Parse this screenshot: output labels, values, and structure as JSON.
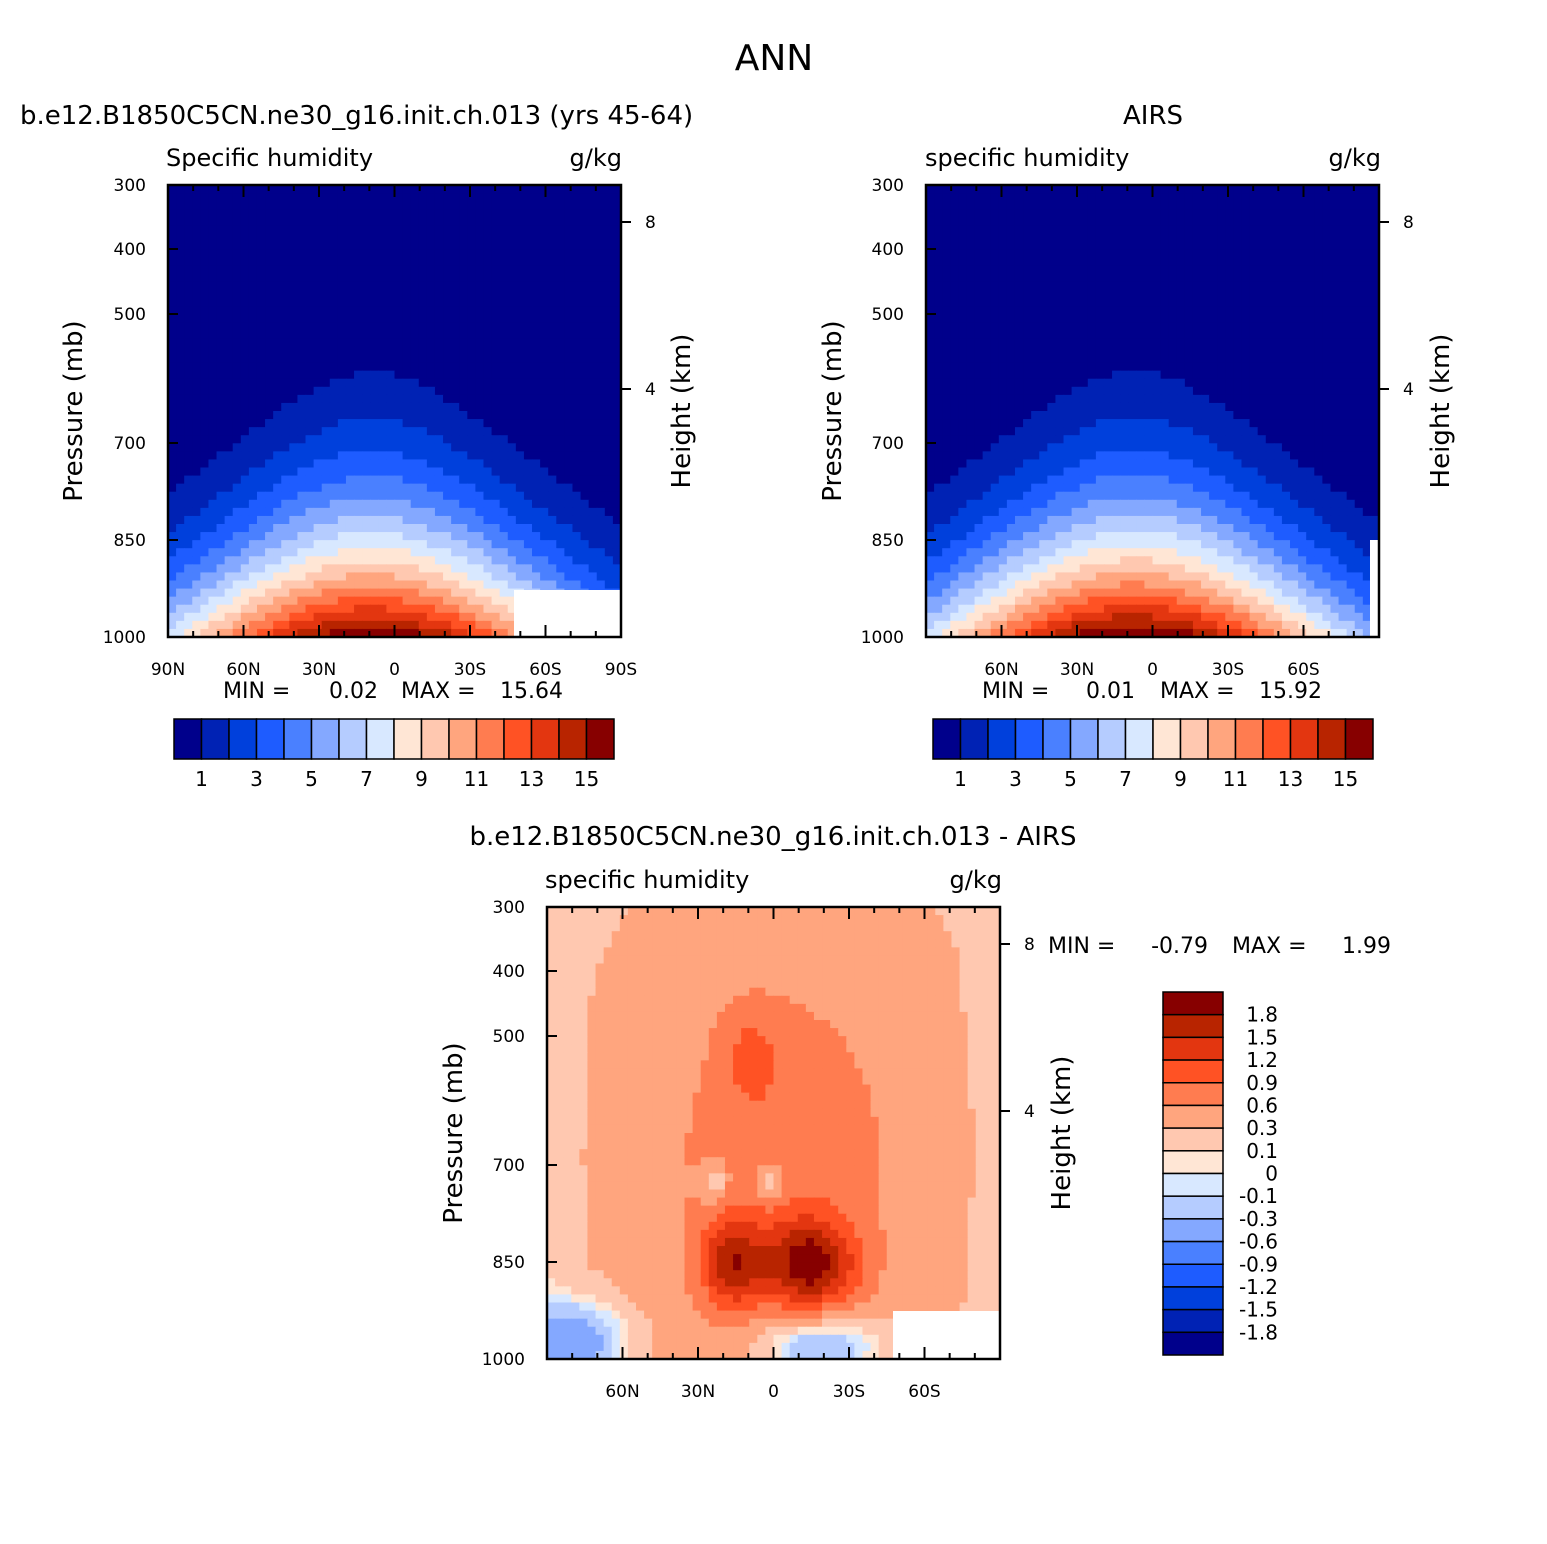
{
  "title": "ANN",
  "chart_data": [
    {
      "type": "heatmap",
      "title": "b.e12.B1850C5CN.ne30_g16.init.ch.013 (yrs 45-64)",
      "left_label": "Specific humidity",
      "units": "g/kg",
      "ylabel": "Pressure (mb)",
      "ylabel_right": "Height (km)",
      "x_ticks": [
        "90N",
        "60N",
        "30N",
        "0",
        "30S",
        "60S",
        "90S"
      ],
      "y_ticks": [
        "300",
        "400",
        "500",
        "700",
        "850",
        "1000"
      ],
      "right_ticks": [
        "8",
        "4"
      ],
      "stats": {
        "min_label": "MIN =",
        "min": "0.02",
        "max_label": "MAX =",
        "max": "15.64"
      },
      "colorbar_labels": [
        "1",
        "3",
        "5",
        "7",
        "9",
        "11",
        "13",
        "15"
      ],
      "peak": 15.64
    },
    {
      "type": "heatmap",
      "title": "AIRS",
      "left_label": "specific humidity",
      "units": "g/kg",
      "ylabel": "Pressure (mb)",
      "ylabel_right": "Height (km)",
      "x_ticks": [
        "60N",
        "30N",
        "0",
        "30S",
        "60S"
      ],
      "y_ticks": [
        "300",
        "400",
        "500",
        "700",
        "850",
        "1000"
      ],
      "right_ticks": [
        "8",
        "4"
      ],
      "stats": {
        "min_label": "MIN =",
        "min": "0.01",
        "max_label": "MAX =",
        "max": "15.92"
      },
      "colorbar_labels": [
        "1",
        "3",
        "5",
        "7",
        "9",
        "11",
        "13",
        "15"
      ],
      "peak": 15.92
    },
    {
      "type": "heatmap",
      "title": "b.e12.B1850C5CN.ne30_g16.init.ch.013 - AIRS",
      "left_label": "specific humidity",
      "units": "g/kg",
      "ylabel": "Pressure (mb)",
      "ylabel_right": "Height (km)",
      "x_ticks": [
        "60N",
        "30N",
        "0",
        "30S",
        "60S"
      ],
      "y_ticks": [
        "300",
        "400",
        "500",
        "700",
        "850",
        "1000"
      ],
      "right_ticks": [
        "8",
        "4"
      ],
      "stats": {
        "min_label": "MIN =",
        "min": "-0.79",
        "max_label": "MAX =",
        "max": "1.99"
      },
      "colorbar_labels": [
        "1.8",
        "1.5",
        "1.2",
        "0.9",
        "0.6",
        "0.3",
        "0.1",
        "0",
        "-0.1",
        "-0.3",
        "-0.6",
        "-0.9",
        "-1.2",
        "-1.5",
        "-1.8"
      ]
    }
  ],
  "colors": {
    "abs_scale": [
      "#00008b",
      "#0022b4",
      "#0040dc",
      "#1e5cff",
      "#4a80ff",
      "#84a8ff",
      "#b5ccff",
      "#d8e8ff",
      "#ffe6d5",
      "#ffc8b0",
      "#ffa57e",
      "#ff7c50",
      "#ff5224",
      "#e33610",
      "#b82400",
      "#870000"
    ],
    "diff_scale": [
      "#870000",
      "#b82400",
      "#e33610",
      "#ff5224",
      "#ff7c50",
      "#ffa57e",
      "#ffc8b0",
      "#ffe6d5",
      "#d8e8ff",
      "#b5ccff",
      "#84a8ff",
      "#4a80ff",
      "#1e5cff",
      "#0040dc",
      "#0022b4",
      "#00008b"
    ]
  }
}
